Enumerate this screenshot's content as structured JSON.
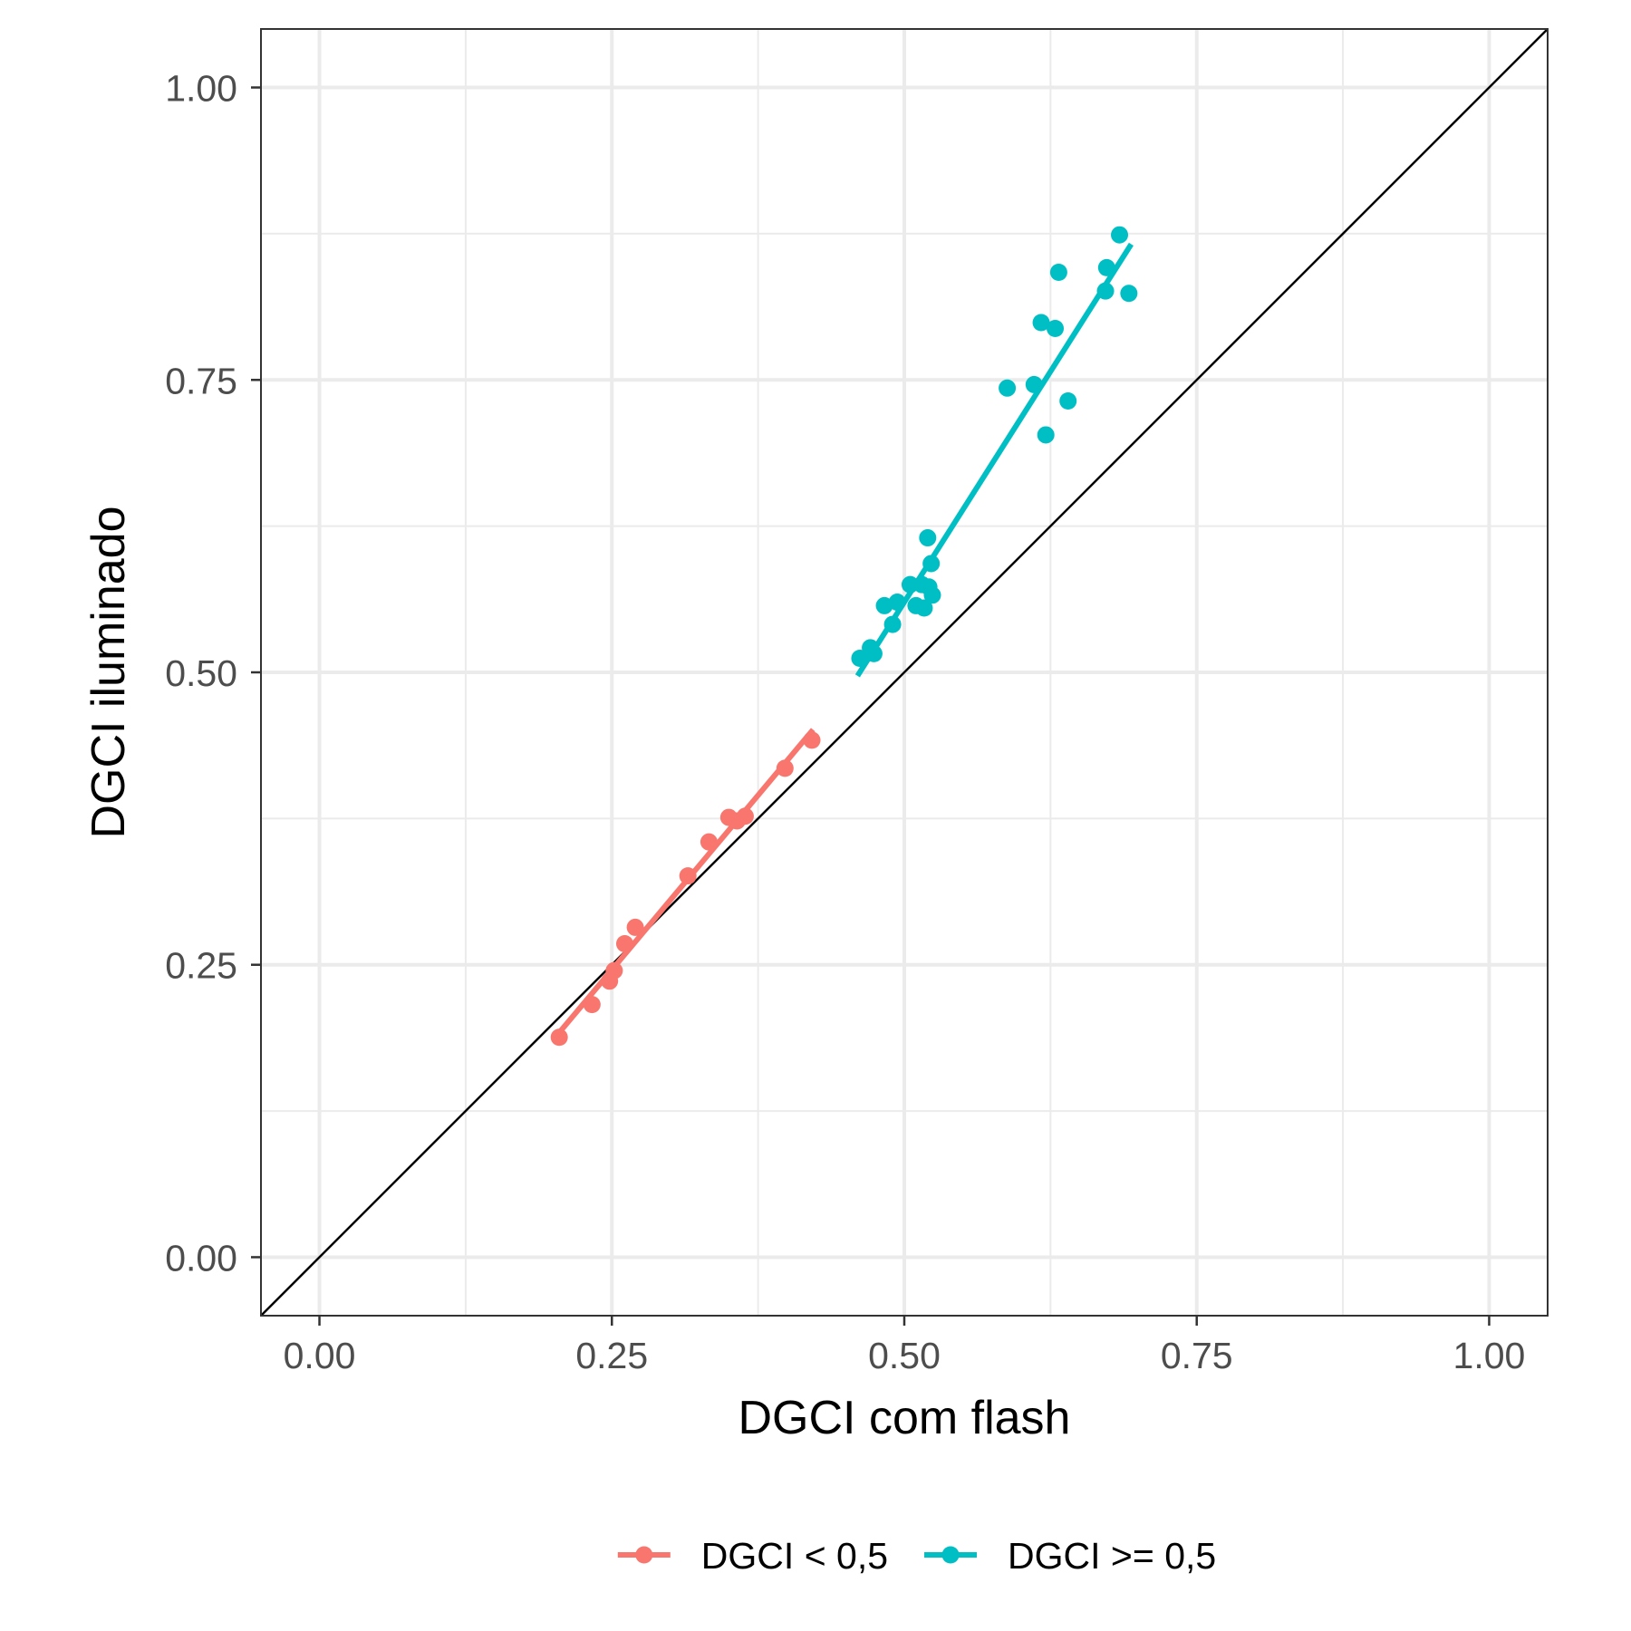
{
  "chart_data": {
    "type": "scatter",
    "title": "",
    "xlabel": "DGCI com flash",
    "ylabel": "DGCI iluminado",
    "xlim": [
      -0.05,
      1.05
    ],
    "ylim": [
      -0.05,
      1.05
    ],
    "x_ticks": [
      0.0,
      0.25,
      0.5,
      0.75,
      1.0
    ],
    "y_ticks": [
      0.0,
      0.25,
      0.5,
      0.75,
      1.0
    ],
    "x_tick_labels": [
      "0.00",
      "0.25",
      "0.50",
      "0.75",
      "1.00"
    ],
    "y_tick_labels": [
      "0.00",
      "0.25",
      "0.50",
      "0.75",
      "1.00"
    ],
    "grid": true,
    "legend_position": "bottom",
    "reference_line": {
      "description": "y = x",
      "color": "#000000"
    },
    "series": [
      {
        "name": "DGCI < 0,5",
        "color": "#F8766D",
        "points": [
          {
            "x": 0.205,
            "y": 0.188
          },
          {
            "x": 0.233,
            "y": 0.216
          },
          {
            "x": 0.248,
            "y": 0.236
          },
          {
            "x": 0.252,
            "y": 0.245
          },
          {
            "x": 0.261,
            "y": 0.268
          },
          {
            "x": 0.27,
            "y": 0.282
          },
          {
            "x": 0.315,
            "y": 0.326
          },
          {
            "x": 0.333,
            "y": 0.355
          },
          {
            "x": 0.35,
            "y": 0.376
          },
          {
            "x": 0.357,
            "y": 0.373
          },
          {
            "x": 0.364,
            "y": 0.377
          },
          {
            "x": 0.398,
            "y": 0.418
          },
          {
            "x": 0.421,
            "y": 0.442
          }
        ],
        "fit": {
          "x": [
            0.205,
            0.422
          ],
          "y": [
            0.192,
            0.451
          ]
        }
      },
      {
        "name": "DGCI >= 0,5",
        "color": "#00BFC4",
        "points": [
          {
            "x": 0.462,
            "y": 0.512
          },
          {
            "x": 0.471,
            "y": 0.521
          },
          {
            "x": 0.474,
            "y": 0.516
          },
          {
            "x": 0.483,
            "y": 0.557
          },
          {
            "x": 0.49,
            "y": 0.541
          },
          {
            "x": 0.494,
            "y": 0.56
          },
          {
            "x": 0.505,
            "y": 0.575
          },
          {
            "x": 0.51,
            "y": 0.557
          },
          {
            "x": 0.515,
            "y": 0.575
          },
          {
            "x": 0.517,
            "y": 0.555
          },
          {
            "x": 0.52,
            "y": 0.615
          },
          {
            "x": 0.521,
            "y": 0.573
          },
          {
            "x": 0.523,
            "y": 0.593
          },
          {
            "x": 0.524,
            "y": 0.566
          },
          {
            "x": 0.588,
            "y": 0.743
          },
          {
            "x": 0.611,
            "y": 0.746
          },
          {
            "x": 0.617,
            "y": 0.799
          },
          {
            "x": 0.621,
            "y": 0.703
          },
          {
            "x": 0.629,
            "y": 0.794
          },
          {
            "x": 0.632,
            "y": 0.842
          },
          {
            "x": 0.64,
            "y": 0.732
          },
          {
            "x": 0.672,
            "y": 0.826
          },
          {
            "x": 0.673,
            "y": 0.846
          },
          {
            "x": 0.684,
            "y": 0.874
          },
          {
            "x": 0.692,
            "y": 0.824
          }
        ],
        "fit": {
          "x": [
            0.46,
            0.694
          ],
          "y": [
            0.497,
            0.866
          ]
        }
      }
    ]
  }
}
